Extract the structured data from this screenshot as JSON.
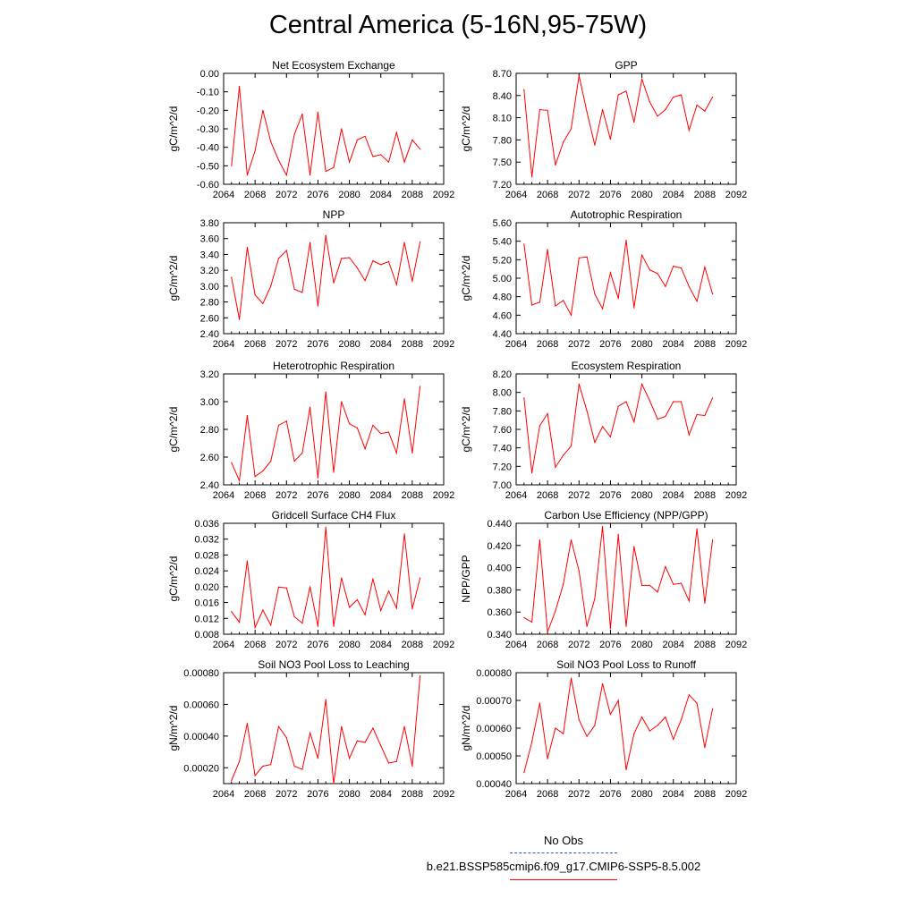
{
  "title": "Central America (5-16N,95-75W)",
  "legend": {
    "obs_label": "No Obs",
    "model_label": "b.e21.BSSP585cmip6.f09_g17.CMIP6-SSP5-8.5.002",
    "obs_color": "#3b4fd6",
    "model_color": "#ff0000"
  },
  "x_years": [
    2065,
    2066,
    2067,
    2068,
    2069,
    2070,
    2071,
    2072,
    2073,
    2074,
    2075,
    2076,
    2077,
    2078,
    2079,
    2080,
    2081,
    2082,
    2083,
    2084,
    2085,
    2086,
    2087,
    2088,
    2089
  ],
  "chart_data": [
    {
      "type": "line",
      "title": "Net Ecosystem Exchange",
      "ylabel": "gC/m^2/d",
      "xlim": [
        2064,
        2092
      ],
      "xticks": [
        "2064",
        "2068",
        "2072",
        "2076",
        "2080",
        "2084",
        "2088",
        "2092"
      ],
      "ylim": [
        -0.6,
        0.0
      ],
      "yticks": [
        "0.00",
        "-0.10",
        "-0.20",
        "-0.30",
        "-0.40",
        "-0.50",
        "-0.60"
      ],
      "values": [
        -0.5,
        -0.07,
        -0.55,
        -0.42,
        -0.2,
        -0.37,
        -0.47,
        -0.55,
        -0.33,
        -0.22,
        -0.55,
        -0.21,
        -0.53,
        -0.51,
        -0.3,
        -0.48,
        -0.36,
        -0.34,
        -0.45,
        -0.44,
        -0.48,
        -0.32,
        -0.48,
        -0.36,
        -0.41
      ]
    },
    {
      "type": "line",
      "title": "GPP",
      "ylabel": "gC/m^2/d",
      "xlim": [
        2064,
        2092
      ],
      "xticks": [
        "2064",
        "2068",
        "2072",
        "2076",
        "2080",
        "2084",
        "2088",
        "2092"
      ],
      "ylim": [
        7.2,
        8.7
      ],
      "yticks": [
        "8.70",
        "8.40",
        "8.10",
        "7.80",
        "7.50",
        "7.20"
      ],
      "values": [
        8.48,
        7.3,
        8.21,
        8.2,
        7.46,
        7.77,
        7.95,
        8.67,
        8.18,
        7.73,
        8.21,
        7.81,
        8.41,
        8.46,
        8.04,
        8.62,
        8.31,
        8.12,
        8.21,
        8.38,
        8.41,
        7.93,
        8.27,
        8.19,
        8.38
      ]
    },
    {
      "type": "line",
      "title": "NPP",
      "ylabel": "gC/m^2/d",
      "xlim": [
        2064,
        2092
      ],
      "xticks": [
        "2064",
        "2068",
        "2072",
        "2076",
        "2080",
        "2084",
        "2088",
        "2092"
      ],
      "ylim": [
        2.4,
        3.8
      ],
      "yticks": [
        "3.80",
        "3.60",
        "3.40",
        "3.20",
        "3.00",
        "2.80",
        "2.60",
        "2.40"
      ],
      "values": [
        3.11,
        2.58,
        3.49,
        2.89,
        2.78,
        3.0,
        3.35,
        3.45,
        2.96,
        2.92,
        3.55,
        2.75,
        3.64,
        3.04,
        3.35,
        3.36,
        3.23,
        3.07,
        3.32,
        3.27,
        3.31,
        3.02,
        3.55,
        3.06,
        3.56
      ]
    },
    {
      "type": "line",
      "title": "Autotrophic Respiration",
      "ylabel": "gC/m^2/d",
      "xlim": [
        2064,
        2092
      ],
      "xticks": [
        "2064",
        "2068",
        "2072",
        "2076",
        "2080",
        "2084",
        "2088",
        "2092"
      ],
      "ylim": [
        4.4,
        5.6
      ],
      "yticks": [
        "5.60",
        "5.40",
        "5.20",
        "5.00",
        "4.80",
        "4.60",
        "4.40"
      ],
      "values": [
        5.37,
        4.71,
        4.74,
        5.31,
        4.7,
        4.76,
        4.6,
        5.22,
        5.23,
        4.83,
        4.67,
        5.06,
        4.78,
        5.41,
        4.68,
        5.25,
        5.09,
        5.05,
        4.91,
        5.13,
        5.11,
        4.91,
        4.75,
        5.12,
        4.83
      ]
    },
    {
      "type": "line",
      "title": "Heterotrophic Respiration",
      "ylabel": "gC/m^2/d",
      "xlim": [
        2064,
        2092
      ],
      "xticks": [
        "2064",
        "2068",
        "2072",
        "2076",
        "2080",
        "2084",
        "2088",
        "2092"
      ],
      "ylim": [
        2.4,
        3.2
      ],
      "yticks": [
        "3.20",
        "3.00",
        "2.80",
        "2.60",
        "2.40"
      ],
      "values": [
        2.56,
        2.43,
        2.9,
        2.46,
        2.5,
        2.57,
        2.83,
        2.86,
        2.57,
        2.63,
        2.96,
        2.45,
        3.07,
        2.49,
        3.0,
        2.84,
        2.81,
        2.66,
        2.83,
        2.77,
        2.78,
        2.63,
        3.02,
        2.63,
        3.11
      ]
    },
    {
      "type": "line",
      "title": "Ecosystem Respiration",
      "ylabel": "gC/m^2/d",
      "xlim": [
        2064,
        2092
      ],
      "xticks": [
        "2064",
        "2068",
        "2072",
        "2076",
        "2080",
        "2084",
        "2088",
        "2092"
      ],
      "ylim": [
        7.0,
        8.2
      ],
      "yticks": [
        "8.20",
        "8.00",
        "7.80",
        "7.60",
        "7.40",
        "7.20",
        "7.00"
      ],
      "values": [
        7.94,
        7.13,
        7.64,
        7.77,
        7.19,
        7.32,
        7.42,
        8.09,
        7.8,
        7.46,
        7.63,
        7.52,
        7.85,
        7.9,
        7.68,
        8.09,
        7.91,
        7.71,
        7.74,
        7.9,
        7.9,
        7.54,
        7.76,
        7.75,
        7.94
      ]
    },
    {
      "type": "line",
      "title": "Gridcell Surface CH4 Flux",
      "ylabel": "gC/m^2/d",
      "xlim": [
        2064,
        2092
      ],
      "xticks": [
        "2064",
        "2068",
        "2072",
        "2076",
        "2080",
        "2084",
        "2088",
        "2092"
      ],
      "ylim": [
        0.008,
        0.036
      ],
      "yticks": [
        "0.036",
        "0.032",
        "0.028",
        "0.024",
        "0.020",
        "0.016",
        "0.012",
        "0.008"
      ],
      "values": [
        0.0137,
        0.011,
        0.0265,
        0.0097,
        0.0141,
        0.0103,
        0.0199,
        0.0197,
        0.0124,
        0.0108,
        0.02,
        0.01,
        0.035,
        0.01,
        0.0222,
        0.0148,
        0.0167,
        0.0129,
        0.022,
        0.014,
        0.0189,
        0.0146,
        0.0333,
        0.0144,
        0.0222
      ]
    },
    {
      "type": "line",
      "title": "Carbon Use Efficiency (NPP/GPP)",
      "ylabel": "NPP/GPP",
      "xlim": [
        2064,
        2092
      ],
      "xticks": [
        "2064",
        "2068",
        "2072",
        "2076",
        "2080",
        "2084",
        "2088",
        "2092"
      ],
      "ylim": [
        0.34,
        0.44
      ],
      "yticks": [
        "0.440",
        "0.420",
        "0.400",
        "0.380",
        "0.360",
        "0.340"
      ],
      "values": [
        0.355,
        0.351,
        0.425,
        0.342,
        0.361,
        0.385,
        0.425,
        0.397,
        0.347,
        0.372,
        0.437,
        0.345,
        0.43,
        0.347,
        0.419,
        0.384,
        0.384,
        0.378,
        0.401,
        0.385,
        0.386,
        0.37,
        0.435,
        0.368,
        0.425
      ]
    },
    {
      "type": "line",
      "title": "Soil NO3 Pool Loss to Leaching",
      "ylabel": "gN/m^2/d",
      "xlim": [
        2064,
        2092
      ],
      "xticks": [
        "2064",
        "2068",
        "2072",
        "2076",
        "2080",
        "2084",
        "2088",
        "2092"
      ],
      "ylim": [
        0.0001,
        0.0008
      ],
      "yticks": [
        "0.00080",
        "0.00060",
        "0.00040",
        "0.00020"
      ],
      "values": [
        0.00012,
        0.00024,
        0.00048,
        0.00015,
        0.00021,
        0.00022,
        0.00046,
        0.00039,
        0.00021,
        0.00019,
        0.00042,
        0.00026,
        0.00063,
        0.0001,
        0.00046,
        0.00026,
        0.00037,
        0.00036,
        0.00045,
        0.00034,
        0.00023,
        0.00024,
        0.00046,
        0.00021,
        0.00078
      ]
    },
    {
      "type": "line",
      "title": "Soil NO3 Pool Loss to Runoff",
      "ylabel": "gN/m^2/d",
      "xlim": [
        2064,
        2092
      ],
      "xticks": [
        "2064",
        "2068",
        "2072",
        "2076",
        "2080",
        "2084",
        "2088",
        "2092"
      ],
      "ylim": [
        0.0004,
        0.0008
      ],
      "yticks": [
        "0.00080",
        "0.00070",
        "0.00060",
        "0.00050",
        "0.00040"
      ],
      "values": [
        0.00044,
        0.00055,
        0.00069,
        0.00049,
        0.0006,
        0.00058,
        0.00078,
        0.00063,
        0.00057,
        0.00061,
        0.00076,
        0.00065,
        0.0007,
        0.00045,
        0.00058,
        0.00064,
        0.00059,
        0.00061,
        0.00064,
        0.00056,
        0.00063,
        0.00072,
        0.00069,
        0.00053,
        0.00067
      ]
    }
  ]
}
